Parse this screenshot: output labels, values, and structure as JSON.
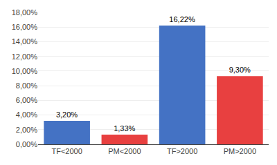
{
  "chart_data": {
    "type": "bar",
    "categories": [
      "TF<2000",
      "PM<2000",
      "TF>2000",
      "PM>2000"
    ],
    "values": [
      3.2,
      1.33,
      16.22,
      9.3
    ],
    "value_labels": [
      "3,20%",
      "1,33%",
      "16,22%",
      "9,30%"
    ],
    "data_labels": true,
    "colors": [
      "#4472C4",
      "#E84040",
      "#4472C4",
      "#E84040"
    ],
    "ylim": [
      0,
      18
    ],
    "yticks": [
      {
        "value": 0,
        "label": "0,00%"
      },
      {
        "value": 2,
        "label": "2,00%"
      },
      {
        "value": 4,
        "label": "4,00%"
      },
      {
        "value": 6,
        "label": "6,00%"
      },
      {
        "value": 8,
        "label": "8,00%"
      },
      {
        "value": 10,
        "label": "10,00%"
      },
      {
        "value": 12,
        "label": "12,00%"
      },
      {
        "value": 14,
        "label": "14,00%"
      },
      {
        "value": 16,
        "label": "16,00%"
      },
      {
        "value": 18,
        "label": "18,00%"
      }
    ],
    "grid": true
  }
}
